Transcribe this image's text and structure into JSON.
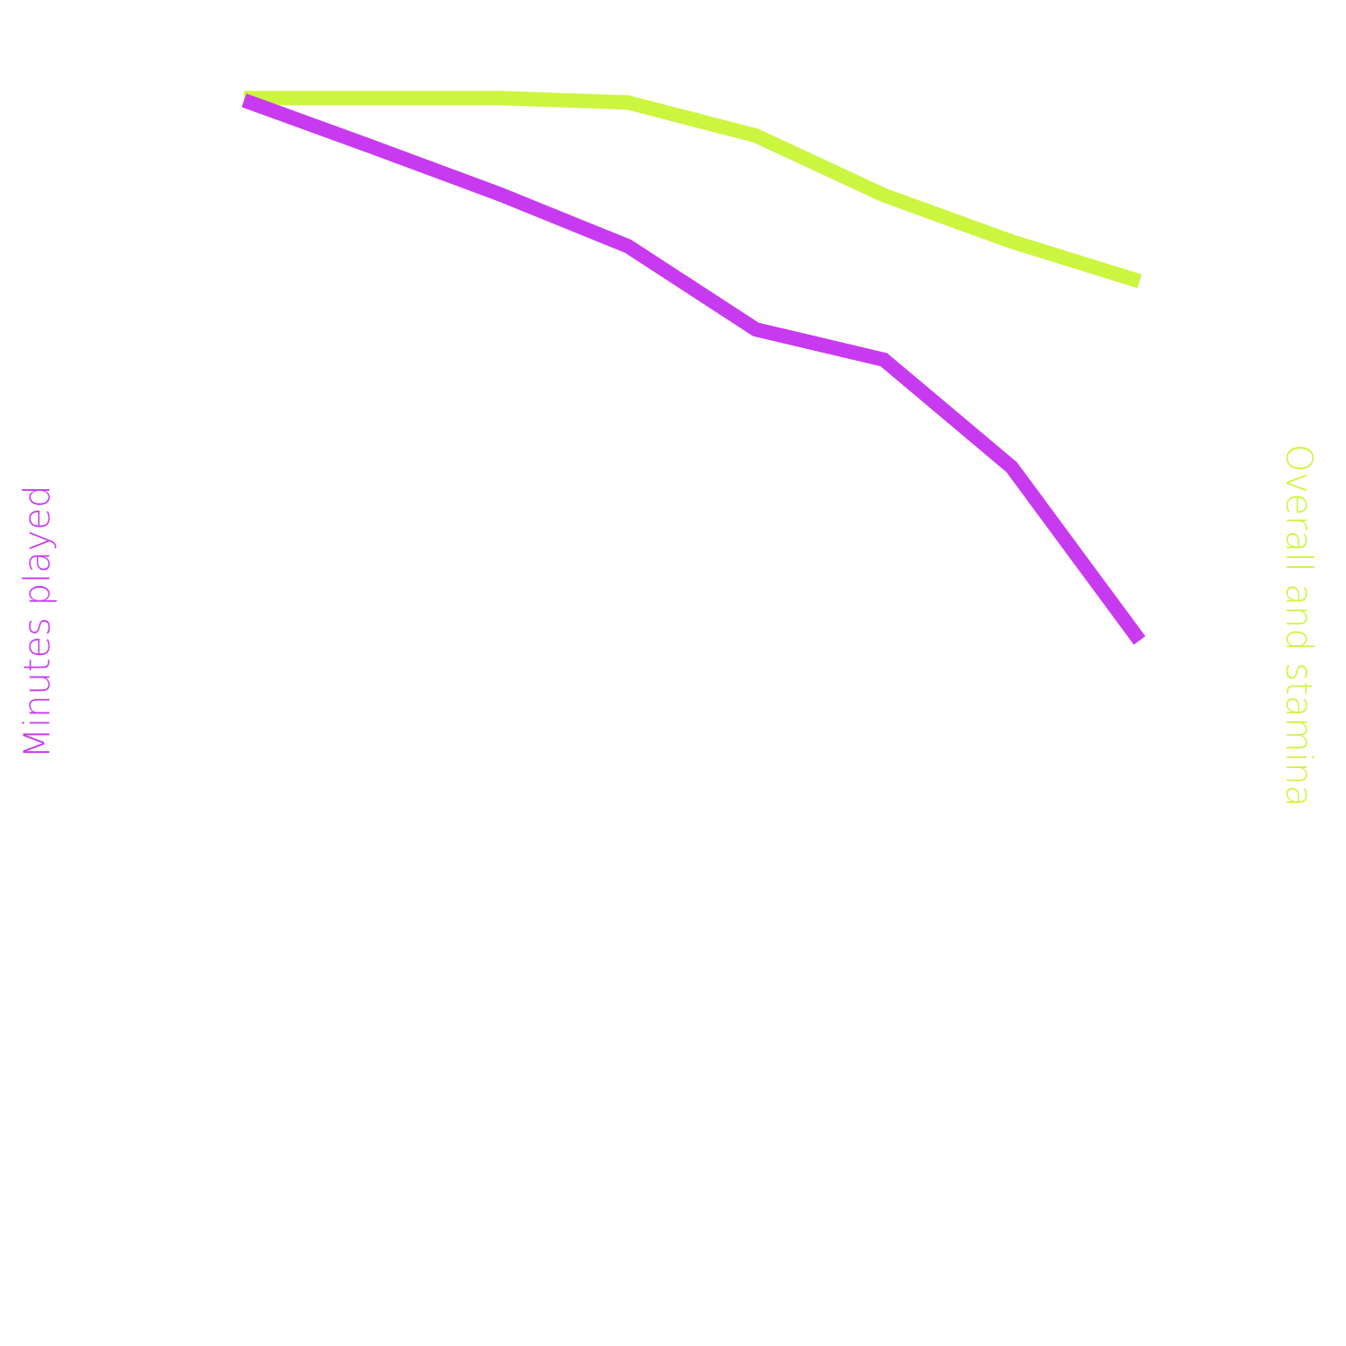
{
  "chart_data": {
    "type": "line",
    "x": [
      1,
      2,
      3,
      4,
      5,
      6,
      7,
      8
    ],
    "series": [
      {
        "axis": "left",
        "color": "#c83af0",
        "values": [
          100,
          91.4,
          82.6,
          73.0,
          57.6,
          52.0,
          32.1,
          0
        ]
      },
      {
        "axis": "right",
        "color": "#ccf53f",
        "values": [
          100,
          100,
          100,
          99.8,
          98.3,
          95.6,
          93.5,
          91.7
        ]
      }
    ],
    "left_axis": {
      "label": "Minutes played",
      "color": "#c83af0",
      "ylim": [
        -104,
        108.6
      ]
    },
    "right_axis": {
      "label": "Overall and stamina",
      "color": "#ccf53f",
      "ylim": [
        50,
        102
      ]
    },
    "grid": false,
    "legend": "none"
  }
}
